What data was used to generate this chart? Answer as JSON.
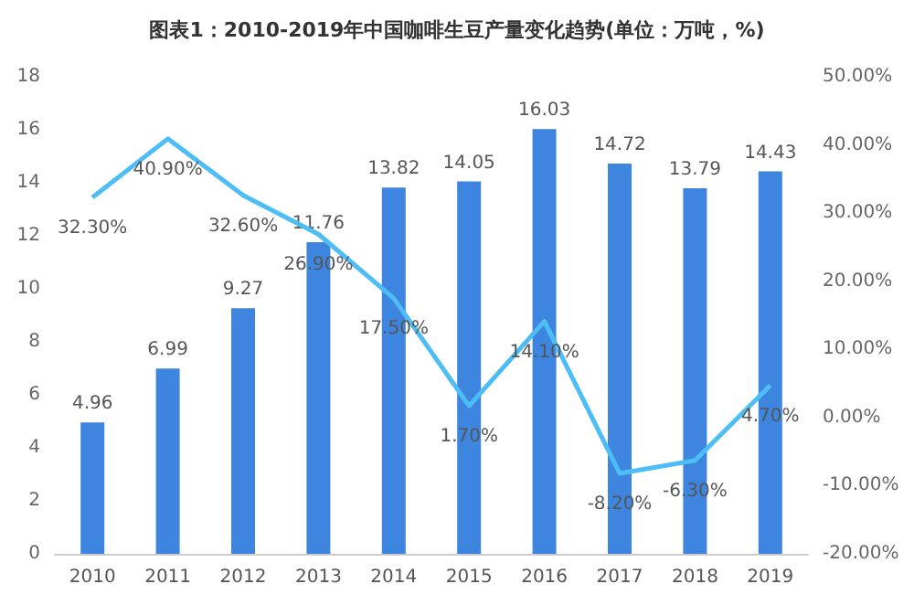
{
  "chart_data": {
    "type": "bar",
    "title": "图表1：2010-2019年中国咖啡生豆产量变化趋势(单位：万吨，%)",
    "categories": [
      "2010",
      "2011",
      "2012",
      "2013",
      "2014",
      "2015",
      "2016",
      "2017",
      "2018",
      "2019"
    ],
    "series": [
      {
        "color": "#3d85de",
        "values": [
          4.96,
          6.99,
          9.27,
          11.76,
          13.82,
          14.05,
          16.03,
          14.72,
          13.79,
          14.43
        ],
        "value_labels": [
          "4.96",
          "6.99",
          "9.27",
          "11.76",
          "13.82",
          "14.05",
          "16.03",
          "14.72",
          "13.79",
          "14.43"
        ]
      },
      {
        "type": "line",
        "axis": "y2",
        "color": "#4dbdf5",
        "values": [
          32.3,
          40.9,
          32.6,
          26.9,
          17.5,
          1.7,
          14.1,
          -8.2,
          -6.3,
          4.7
        ],
        "value_labels": [
          "32.30%",
          "40.90%",
          "32.60%",
          "26.90%",
          "17.50%",
          "1.70%",
          "14.10%",
          "-8.20%",
          "-6.30%",
          "4.70%"
        ]
      }
    ],
    "ylim": [
      0,
      18
    ],
    "yticks": [
      0,
      2,
      4,
      6,
      8,
      10,
      12,
      14,
      16,
      18
    ],
    "y2lim": [
      -20,
      50
    ],
    "y2ticks": [
      {
        "value": -20,
        "label": "-20.00%"
      },
      {
        "value": -10,
        "label": "-10.00%"
      },
      {
        "value": 0,
        "label": "0.00%"
      },
      {
        "value": 10,
        "label": "10.00%"
      },
      {
        "value": 20,
        "label": "20.00%"
      },
      {
        "value": 30,
        "label": "30.00%"
      },
      {
        "value": 40,
        "label": "40.00%"
      },
      {
        "value": 50,
        "label": "50.00%"
      }
    ],
    "grid": false,
    "marker": "none",
    "line_style": "solid"
  }
}
